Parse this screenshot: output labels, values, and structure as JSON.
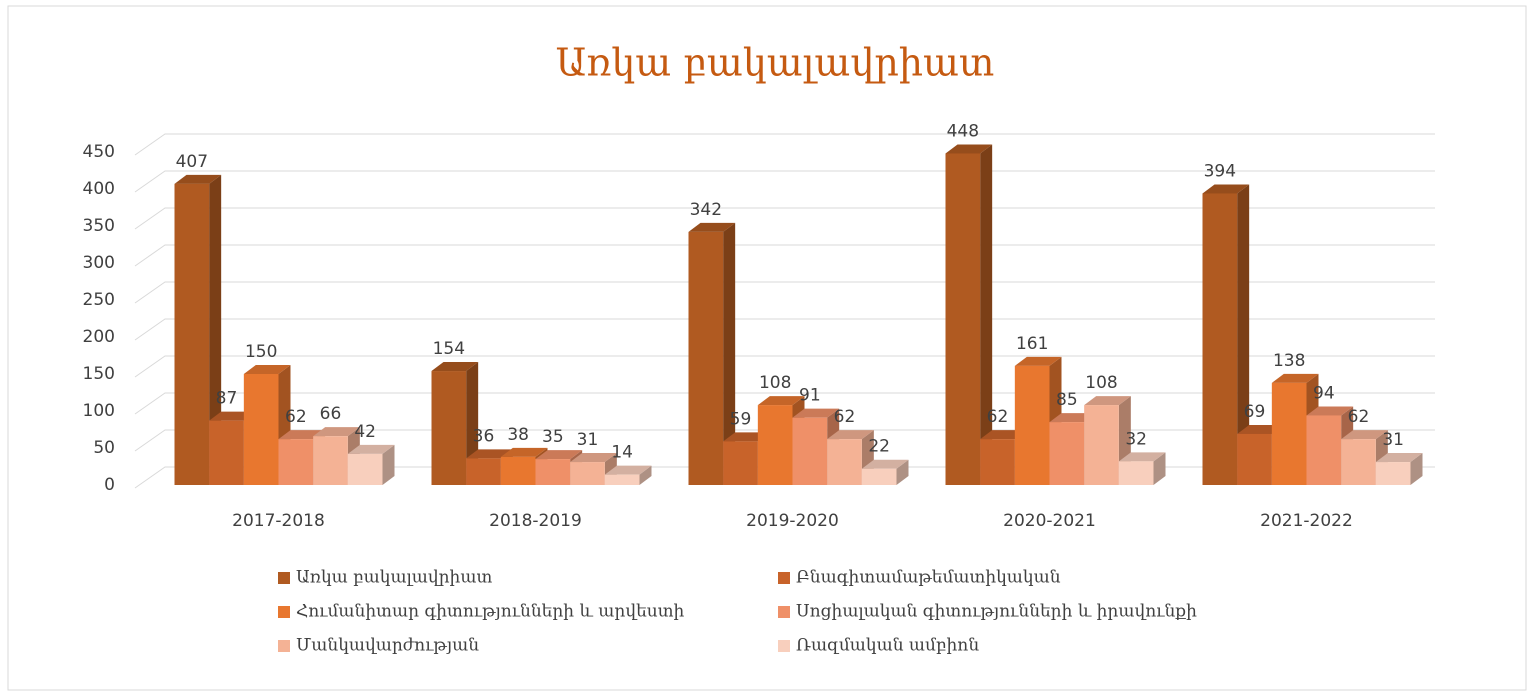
{
  "chart_data": {
    "type": "bar3d",
    "title": "Առկա բակալավրիատ",
    "categories": [
      "2017-2018",
      "2018-2019",
      "2019-2020",
      "2020-2021",
      "2021-2022"
    ],
    "series": [
      {
        "name": "Առկա բակալավրիատ",
        "color": "#b05a21",
        "values": [
          407,
          154,
          342,
          448,
          394
        ]
      },
      {
        "name": "Բնագիտամաթեմատիկական",
        "color": "#c8632a",
        "values": [
          87,
          36,
          59,
          62,
          69
        ]
      },
      {
        "name": "Հումանիտար գիտությունների և արվեստի",
        "color": "#e8772f",
        "values": [
          150,
          38,
          108,
          161,
          138
        ]
      },
      {
        "name": "Սոցիալական գիտությունների և իրավունքի",
        "color": "#ef9068",
        "values": [
          62,
          35,
          91,
          85,
          94
        ]
      },
      {
        "name": "Մանկավարժության",
        "color": "#f4b295",
        "values": [
          66,
          31,
          62,
          108,
          62
        ]
      },
      {
        "name": "Ռազմական ամբիոն",
        "color": "#f8cfbd",
        "values": [
          42,
          14,
          22,
          32,
          31
        ]
      }
    ],
    "ylim": [
      0,
      450
    ],
    "yticks": [
      0,
      50,
      100,
      150,
      200,
      250,
      300,
      350,
      400,
      450
    ],
    "grid": true
  }
}
